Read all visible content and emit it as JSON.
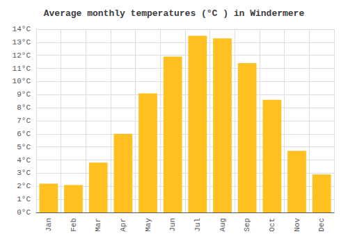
{
  "chart_data": {
    "type": "bar",
    "title": "Average monthly temperatures (°C ) in Windermere",
    "categories": [
      "Jan",
      "Feb",
      "Mar",
      "Apr",
      "May",
      "Jun",
      "Jul",
      "Aug",
      "Sep",
      "Oct",
      "Nov",
      "Dec"
    ],
    "values": [
      2.2,
      2.1,
      3.8,
      6.0,
      9.1,
      11.9,
      13.5,
      13.3,
      11.4,
      8.6,
      4.7,
      2.9
    ],
    "color": "#FFC020",
    "ylim": [
      0,
      14
    ],
    "yticks": [
      {
        "value": 0,
        "label": "0°C"
      },
      {
        "value": 1,
        "label": "1°C"
      },
      {
        "value": 2,
        "label": "2°C"
      },
      {
        "value": 3,
        "label": "3°C"
      },
      {
        "value": 4,
        "label": "4°C"
      },
      {
        "value": 5,
        "label": "5°C"
      },
      {
        "value": 6,
        "label": "6°C"
      },
      {
        "value": 7,
        "label": "7°C"
      },
      {
        "value": 8,
        "label": "8°C"
      },
      {
        "value": 9,
        "label": "9°C"
      },
      {
        "value": 10,
        "label": "10°C"
      },
      {
        "value": 11,
        "label": "11°C"
      },
      {
        "value": 12,
        "label": "12°C"
      },
      {
        "value": 13,
        "label": "13°C"
      },
      {
        "value": 14,
        "label": "14°C"
      }
    ],
    "grid": true
  }
}
